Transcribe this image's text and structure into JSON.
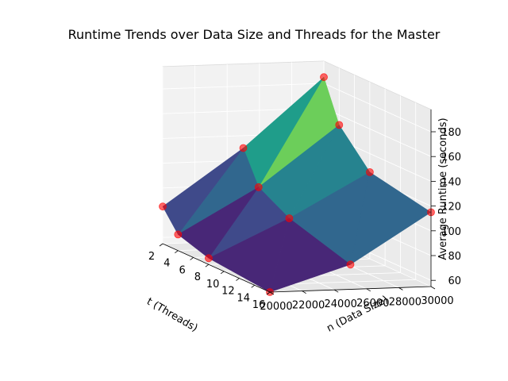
{
  "chart_data": {
    "type": "surface3d",
    "title": "Runtime Trends over Data Size and Threads for the Master",
    "xlabel": "t (Threads)",
    "ylabel": "n (Data Size)",
    "zlabel": "Average Runtime (seconds)",
    "x_ticks": [
      "2",
      "4",
      "6",
      "8",
      "10",
      "12",
      "14",
      "16"
    ],
    "y_ticks": [
      "20000",
      "22000",
      "24000",
      "26000",
      "28000",
      "30000"
    ],
    "z_ticks": [
      "60",
      "80",
      "100",
      "120",
      "140",
      "160",
      "180"
    ],
    "xlim": [
      2,
      16
    ],
    "ylim": [
      20000,
      30000
    ],
    "zlim": [
      55,
      190
    ],
    "points": [
      {
        "t": 2,
        "n": 20000,
        "runtime": 85
      },
      {
        "t": 2,
        "n": 25000,
        "runtime": 130
      },
      {
        "t": 2,
        "n": 30000,
        "runtime": 185
      },
      {
        "t": 4,
        "n": 20000,
        "runtime": 68
      },
      {
        "t": 4,
        "n": 25000,
        "runtime": 104
      },
      {
        "t": 4,
        "n": 30000,
        "runtime": 152
      },
      {
        "t": 8,
        "n": 20000,
        "runtime": 60
      },
      {
        "t": 8,
        "n": 25000,
        "runtime": 90
      },
      {
        "t": 8,
        "n": 30000,
        "runtime": 125
      },
      {
        "t": 16,
        "n": 20000,
        "runtime": 55
      },
      {
        "t": 16,
        "n": 25000,
        "runtime": 75
      },
      {
        "t": 16,
        "n": 30000,
        "runtime": 115
      }
    ],
    "marker_color": "#ff0000",
    "colormap": "viridis",
    "grid": true
  }
}
